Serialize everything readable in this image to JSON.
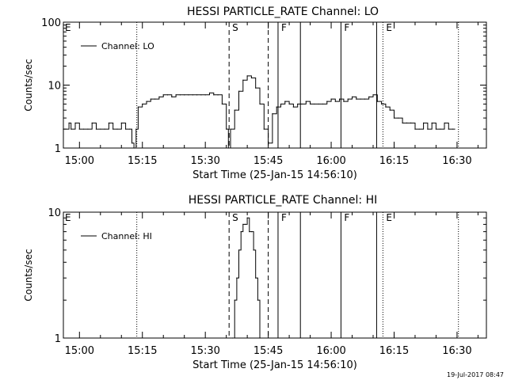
{
  "timestamp": "19-Jul-2017 08:47",
  "chart_data": [
    {
      "type": "line",
      "title": "HESSI PARTICLE_RATE Channel: LO",
      "xlabel": "Start Time (25-Jan-15 14:56:10)",
      "ylabel": "Counts/sec",
      "yscale": "log",
      "ylim": [
        1,
        100
      ],
      "xlim": [
        "14:56:10",
        "16:37:00"
      ],
      "x_ticks": [
        "15:00",
        "15:15",
        "15:30",
        "15:45",
        "16:00",
        "16:15",
        "16:30"
      ],
      "y_ticks": [
        "1",
        "10",
        "100"
      ],
      "legend": "top-left",
      "series": [
        {
          "name": "Channel: LO",
          "x": [
            "14:56:10",
            "14:57:30",
            "14:58:00",
            "14:59:00",
            "15:00:00",
            "15:01:00",
            "15:02:00",
            "15:03:00",
            "15:04:00",
            "15:05:00",
            "15:06:00",
            "15:07:00",
            "15:08:00",
            "15:09:00",
            "15:10:00",
            "15:11:00",
            "15:12:00",
            "15:12:30",
            "15:13:00",
            "15:13:30",
            "15:14:00",
            "15:15:00",
            "15:16:00",
            "15:17:00",
            "15:18:00",
            "15:19:00",
            "15:20:00",
            "15:21:00",
            "15:22:00",
            "15:23:00",
            "15:24:00",
            "15:25:00",
            "15:26:00",
            "15:27:00",
            "15:28:00",
            "15:29:00",
            "15:30:00",
            "15:31:00",
            "15:32:00",
            "15:33:00",
            "15:34:00",
            "15:35:00",
            "15:35:30",
            "15:36:00",
            "15:37:00",
            "15:38:00",
            "15:39:00",
            "15:40:00",
            "15:41:00",
            "15:42:00",
            "15:43:00",
            "15:44:00",
            "15:45:00",
            "15:46:00",
            "15:47:00",
            "15:48:00",
            "15:49:00",
            "15:50:00",
            "15:51:00",
            "15:52:00",
            "15:53:00",
            "15:54:00",
            "15:55:00",
            "15:56:00",
            "15:57:00",
            "15:58:00",
            "15:59:00",
            "16:00:00",
            "16:01:00",
            "16:02:00",
            "16:03:00",
            "16:04:00",
            "16:05:00",
            "16:06:00",
            "16:07:00",
            "16:08:00",
            "16:09:00",
            "16:10:00",
            "16:11:00",
            "16:12:00",
            "16:13:00",
            "16:14:00",
            "16:15:00",
            "16:16:00",
            "16:17:00",
            "16:18:00",
            "16:19:00",
            "16:20:00",
            "16:21:00",
            "16:22:00",
            "16:23:00",
            "16:24:00",
            "16:25:00",
            "16:26:00",
            "16:27:00",
            "16:28:00",
            "16:29:00"
          ],
          "values": [
            2,
            2.5,
            2,
            2.5,
            2,
            2,
            2,
            2.5,
            2,
            2,
            2,
            2.5,
            2,
            2,
            2.5,
            2,
            2,
            1.2,
            1,
            2,
            4.5,
            5,
            5.5,
            6,
            6,
            6.5,
            7,
            7,
            6.5,
            7,
            7,
            7,
            7,
            7,
            7,
            7,
            7,
            7.5,
            7,
            7,
            5,
            2,
            1,
            2,
            4,
            8,
            12,
            14,
            13,
            9,
            5,
            2,
            1.2,
            3.5,
            4.5,
            5,
            5.5,
            5,
            4.5,
            5,
            5,
            5.5,
            5,
            5,
            5,
            5,
            5.5,
            6,
            5.5,
            6,
            5.5,
            6,
            6.5,
            6,
            6,
            6,
            6.5,
            7,
            5.5,
            5,
            4.5,
            4,
            3,
            3,
            2.5,
            2.5,
            2.5,
            2,
            2,
            2.5,
            2,
            2.5,
            2,
            2,
            2.5,
            2,
            2
          ]
        }
      ]
    },
    {
      "type": "line",
      "title": "HESSI PARTICLE_RATE Channel: HI",
      "xlabel": "Start Time (25-Jan-15 14:56:10)",
      "ylabel": "Counts/sec",
      "yscale": "log",
      "ylim": [
        1,
        10
      ],
      "xlim": [
        "14:56:10",
        "16:37:00"
      ],
      "x_ticks": [
        "15:00",
        "15:15",
        "15:30",
        "15:45",
        "16:00",
        "16:15",
        "16:30"
      ],
      "y_ticks": [
        "1",
        "10"
      ],
      "legend": "top-left",
      "series": [
        {
          "name": "Channel: HI",
          "x": [
            "15:36:30",
            "15:37:00",
            "15:37:30",
            "15:38:00",
            "15:38:30",
            "15:39:00",
            "15:39:30",
            "15:40:00",
            "15:40:30",
            "15:41:00",
            "15:41:30",
            "15:42:00",
            "15:42:30",
            "15:43:00"
          ],
          "values": [
            1,
            2,
            3,
            5,
            7,
            8,
            8,
            9,
            7,
            7,
            5,
            3,
            2,
            1
          ]
        }
      ]
    }
  ],
  "markers": [
    {
      "label": "E",
      "time": "14:56:10",
      "style": "none"
    },
    {
      "label": "",
      "time": "15:13:40",
      "style": "dotted"
    },
    {
      "label": "S",
      "time": "15:35:40",
      "style": "dashed"
    },
    {
      "label": "",
      "time": "15:45:00",
      "style": "dashed"
    },
    {
      "label": "F",
      "time": "15:47:20",
      "style": "solid"
    },
    {
      "label": "",
      "time": "15:52:40",
      "style": "solid"
    },
    {
      "label": "F",
      "time": "16:02:20",
      "style": "solid"
    },
    {
      "label": "",
      "time": "16:10:50",
      "style": "solid"
    },
    {
      "label": "E",
      "time": "16:12:20",
      "style": "dotted"
    },
    {
      "label": "",
      "time": "16:30:20",
      "style": "dotted"
    }
  ]
}
